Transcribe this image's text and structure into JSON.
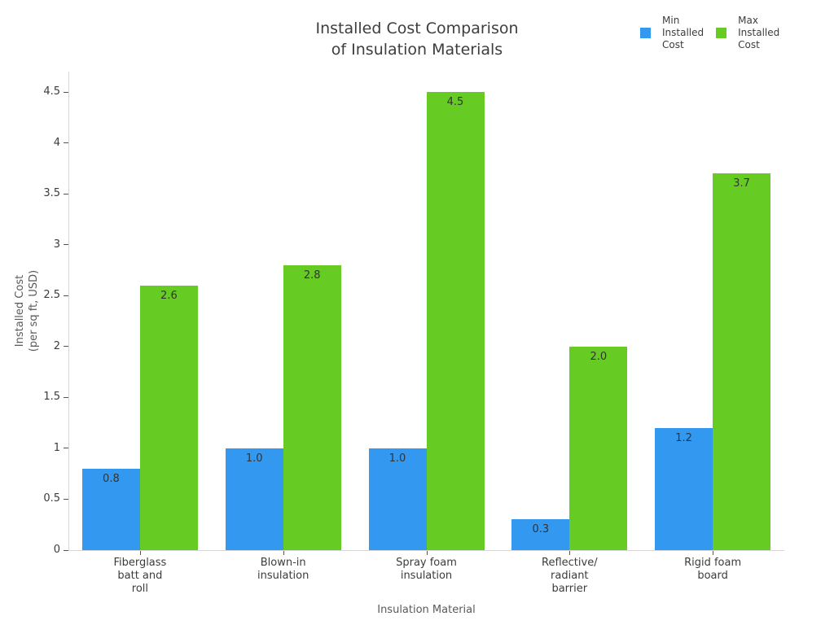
{
  "chart_data": {
    "type": "bar",
    "title": "Installed Cost Comparison\nof Insulation Materials",
    "xlabel": "Insulation Material",
    "ylabel": "Installed Cost\n(per sq ft, USD)",
    "categories": [
      "Fiberglass\nbatt and\nroll",
      "Blown-in\ninsulation",
      "Spray foam\ninsulation",
      "Reflective/\nradiant\nbarrier",
      "Rigid foam\nboard"
    ],
    "series": [
      {
        "name": "Min Installed Cost",
        "legend_label": "Min\nInstalled\nCost",
        "color": "#3398f0",
        "values": [
          0.8,
          1.0,
          1.0,
          0.3,
          1.2
        ]
      },
      {
        "name": "Max Installed Cost",
        "legend_label": "Max\nInstalled\nCost",
        "color": "#66cc24",
        "values": [
          2.6,
          2.8,
          4.5,
          2.0,
          3.7
        ]
      }
    ],
    "ylim": [
      0,
      4.5
    ],
    "ytick_step": 0.5,
    "ytick_labels": [
      "0",
      "0.5",
      "1",
      "1.5",
      "2",
      "2.5",
      "3",
      "3.5",
      "4",
      "4.5"
    ],
    "bar_value_labels": [
      "0.8",
      "1.0",
      "1.0",
      "0.3",
      "1.2",
      "2.6",
      "2.8",
      "4.5",
      "2.0",
      "3.7"
    ],
    "grid": false,
    "legend_position": "top-right"
  }
}
